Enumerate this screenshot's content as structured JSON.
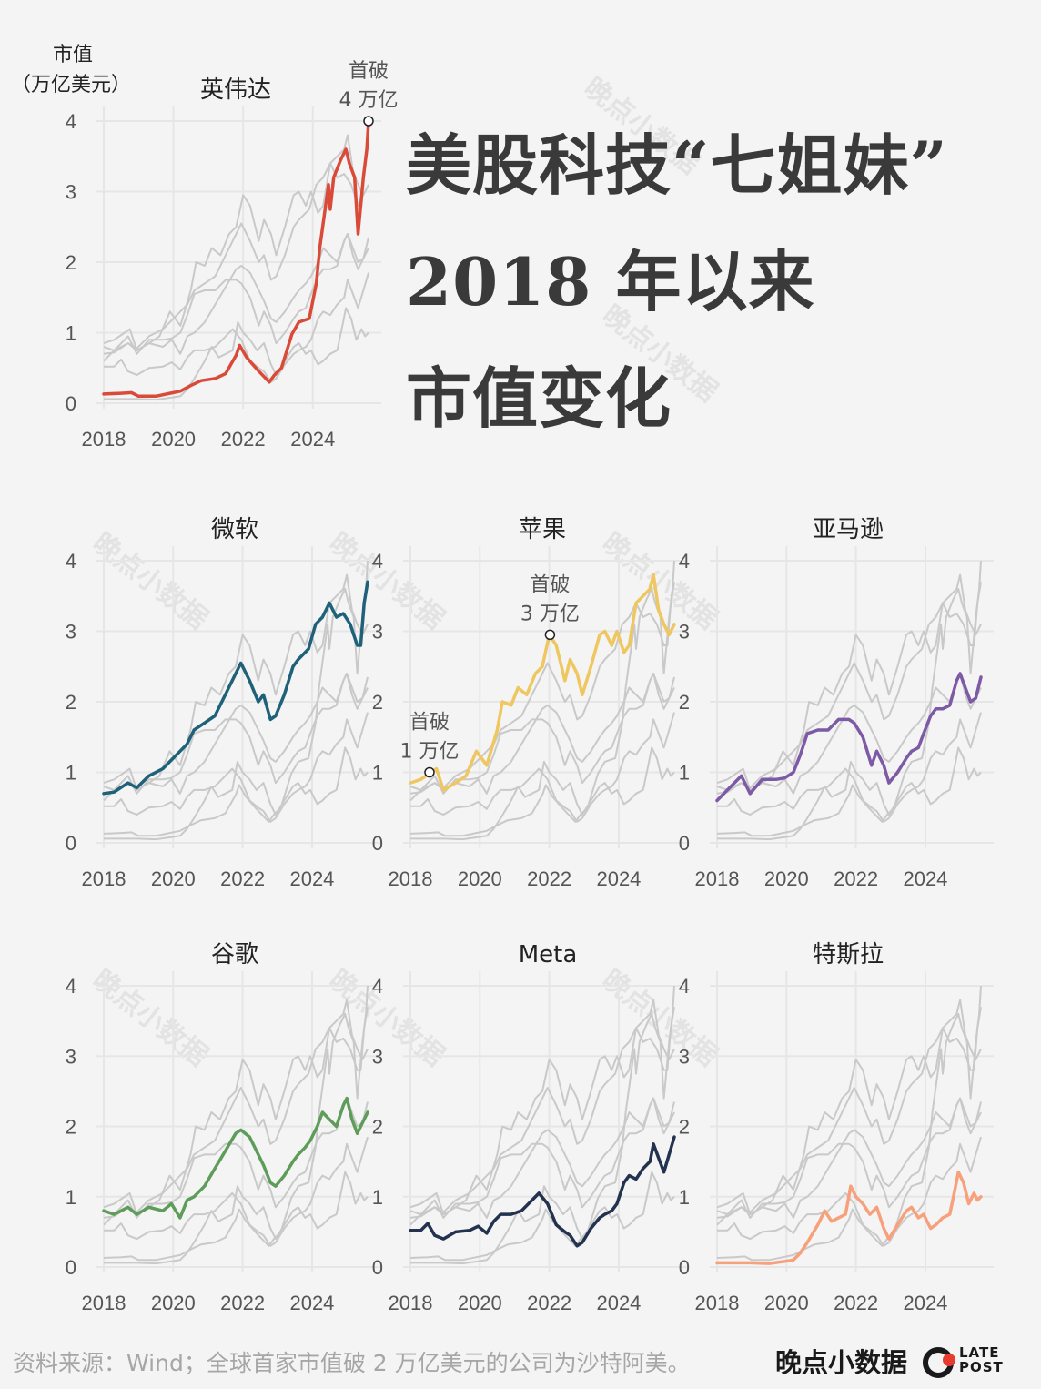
{
  "headline": {
    "line1": "美股科技“七姐妹”",
    "line2": "2018 年以来",
    "line3": "市值变化"
  },
  "source": "资料来源：Wind；全球首家市值破 2 万亿美元的公司为沙特阿美。",
  "brand": {
    "name": "晚点小数据",
    "logo_line1": "LATE",
    "logo_line2": "POST",
    "logo_icon": "latepost-logo-icon"
  },
  "watermark_text": "晚点小数据",
  "chart_data": {
    "type": "line",
    "layout": "small-multiples",
    "ylabel_line1": "市值",
    "ylabel_line2": "（万亿美元）",
    "ylim": [
      0,
      4
    ],
    "yticks": [
      "0",
      "1",
      "2",
      "3",
      "4"
    ],
    "xlim": [
      2018.0,
      2025.6
    ],
    "xticks": [
      "2018",
      "2020",
      "2022",
      "2024"
    ],
    "grid": true,
    "background_series_color": "#c9c9c9",
    "series": [
      {
        "name": "英伟达",
        "color": "#d94a38",
        "points": [
          [
            2018.0,
            0.13
          ],
          [
            2018.5,
            0.14
          ],
          [
            2018.8,
            0.15
          ],
          [
            2019.0,
            0.1
          ],
          [
            2019.5,
            0.1
          ],
          [
            2019.9,
            0.14
          ],
          [
            2020.2,
            0.17
          ],
          [
            2020.5,
            0.25
          ],
          [
            2020.8,
            0.32
          ],
          [
            2021.2,
            0.35
          ],
          [
            2021.5,
            0.42
          ],
          [
            2021.8,
            0.68
          ],
          [
            2021.9,
            0.82
          ],
          [
            2022.1,
            0.65
          ],
          [
            2022.4,
            0.48
          ],
          [
            2022.75,
            0.3
          ],
          [
            2022.9,
            0.4
          ],
          [
            2023.1,
            0.5
          ],
          [
            2023.4,
            0.98
          ],
          [
            2023.6,
            1.15
          ],
          [
            2023.9,
            1.2
          ],
          [
            2024.1,
            1.7
          ],
          [
            2024.2,
            2.2
          ],
          [
            2024.45,
            3.1
          ],
          [
            2024.5,
            2.75
          ],
          [
            2024.6,
            3.2
          ],
          [
            2024.8,
            3.45
          ],
          [
            2024.95,
            3.6
          ],
          [
            2025.05,
            3.4
          ],
          [
            2025.2,
            3.2
          ],
          [
            2025.3,
            2.4
          ],
          [
            2025.45,
            3.2
          ],
          [
            2025.55,
            3.6
          ],
          [
            2025.6,
            4.0
          ]
        ]
      },
      {
        "name": "微软",
        "color": "#1f6178",
        "points": [
          [
            2018.0,
            0.7
          ],
          [
            2018.3,
            0.72
          ],
          [
            2018.7,
            0.85
          ],
          [
            2018.95,
            0.78
          ],
          [
            2019.3,
            0.95
          ],
          [
            2019.7,
            1.05
          ],
          [
            2020.0,
            1.2
          ],
          [
            2020.2,
            1.3
          ],
          [
            2020.4,
            1.4
          ],
          [
            2020.6,
            1.6
          ],
          [
            2020.9,
            1.7
          ],
          [
            2021.2,
            1.8
          ],
          [
            2021.5,
            2.1
          ],
          [
            2021.8,
            2.4
          ],
          [
            2021.95,
            2.55
          ],
          [
            2022.2,
            2.3
          ],
          [
            2022.45,
            2.0
          ],
          [
            2022.6,
            2.1
          ],
          [
            2022.8,
            1.75
          ],
          [
            2022.95,
            1.8
          ],
          [
            2023.2,
            2.1
          ],
          [
            2023.45,
            2.5
          ],
          [
            2023.6,
            2.6
          ],
          [
            2023.9,
            2.75
          ],
          [
            2024.1,
            3.1
          ],
          [
            2024.3,
            3.2
          ],
          [
            2024.5,
            3.4
          ],
          [
            2024.7,
            3.2
          ],
          [
            2024.9,
            3.25
          ],
          [
            2025.1,
            3.1
          ],
          [
            2025.3,
            2.8
          ],
          [
            2025.4,
            2.8
          ],
          [
            2025.5,
            3.4
          ],
          [
            2025.6,
            3.7
          ]
        ]
      },
      {
        "name": "苹果",
        "color": "#efc760",
        "points": [
          [
            2018.0,
            0.85
          ],
          [
            2018.3,
            0.9
          ],
          [
            2018.6,
            1.0
          ],
          [
            2018.75,
            1.05
          ],
          [
            2018.95,
            0.75
          ],
          [
            2019.3,
            0.85
          ],
          [
            2019.6,
            0.95
          ],
          [
            2019.9,
            1.3
          ],
          [
            2020.2,
            1.1
          ],
          [
            2020.5,
            1.6
          ],
          [
            2020.65,
            2.0
          ],
          [
            2020.9,
            1.95
          ],
          [
            2021.1,
            2.2
          ],
          [
            2021.35,
            2.1
          ],
          [
            2021.6,
            2.4
          ],
          [
            2021.8,
            2.5
          ],
          [
            2022.0,
            2.95
          ],
          [
            2022.2,
            2.8
          ],
          [
            2022.45,
            2.3
          ],
          [
            2022.6,
            2.6
          ],
          [
            2022.8,
            2.4
          ],
          [
            2022.95,
            2.1
          ],
          [
            2023.2,
            2.5
          ],
          [
            2023.45,
            2.95
          ],
          [
            2023.6,
            3.0
          ],
          [
            2023.8,
            2.8
          ],
          [
            2023.95,
            3.0
          ],
          [
            2024.15,
            2.7
          ],
          [
            2024.3,
            2.8
          ],
          [
            2024.5,
            3.4
          ],
          [
            2024.7,
            3.5
          ],
          [
            2024.9,
            3.6
          ],
          [
            2025.0,
            3.8
          ],
          [
            2025.15,
            3.3
          ],
          [
            2025.3,
            3.1
          ],
          [
            2025.45,
            2.95
          ],
          [
            2025.6,
            3.1
          ]
        ]
      },
      {
        "name": "亚马逊",
        "color": "#7c5aa6",
        "points": [
          [
            2018.0,
            0.6
          ],
          [
            2018.3,
            0.75
          ],
          [
            2018.7,
            0.95
          ],
          [
            2018.95,
            0.7
          ],
          [
            2019.3,
            0.9
          ],
          [
            2019.7,
            0.9
          ],
          [
            2019.95,
            0.92
          ],
          [
            2020.2,
            1.0
          ],
          [
            2020.4,
            1.25
          ],
          [
            2020.6,
            1.55
          ],
          [
            2020.9,
            1.6
          ],
          [
            2021.2,
            1.6
          ],
          [
            2021.5,
            1.75
          ],
          [
            2021.8,
            1.75
          ],
          [
            2021.95,
            1.7
          ],
          [
            2022.2,
            1.5
          ],
          [
            2022.45,
            1.1
          ],
          [
            2022.6,
            1.3
          ],
          [
            2022.8,
            1.1
          ],
          [
            2022.95,
            0.85
          ],
          [
            2023.2,
            1.0
          ],
          [
            2023.45,
            1.2
          ],
          [
            2023.6,
            1.3
          ],
          [
            2023.8,
            1.35
          ],
          [
            2023.95,
            1.55
          ],
          [
            2024.15,
            1.8
          ],
          [
            2024.3,
            1.9
          ],
          [
            2024.5,
            1.9
          ],
          [
            2024.7,
            1.95
          ],
          [
            2024.9,
            2.3
          ],
          [
            2025.0,
            2.4
          ],
          [
            2025.15,
            2.2
          ],
          [
            2025.3,
            2.0
          ],
          [
            2025.45,
            2.05
          ],
          [
            2025.6,
            2.35
          ]
        ]
      },
      {
        "name": "谷歌",
        "color": "#5e9c59",
        "points": [
          [
            2018.0,
            0.8
          ],
          [
            2018.3,
            0.75
          ],
          [
            2018.7,
            0.85
          ],
          [
            2018.95,
            0.75
          ],
          [
            2019.3,
            0.85
          ],
          [
            2019.7,
            0.8
          ],
          [
            2019.95,
            0.9
          ],
          [
            2020.2,
            0.7
          ],
          [
            2020.4,
            0.95
          ],
          [
            2020.6,
            1.0
          ],
          [
            2020.9,
            1.15
          ],
          [
            2021.2,
            1.4
          ],
          [
            2021.5,
            1.65
          ],
          [
            2021.8,
            1.9
          ],
          [
            2021.95,
            1.95
          ],
          [
            2022.2,
            1.85
          ],
          [
            2022.45,
            1.6
          ],
          [
            2022.6,
            1.45
          ],
          [
            2022.8,
            1.2
          ],
          [
            2022.95,
            1.15
          ],
          [
            2023.2,
            1.3
          ],
          [
            2023.45,
            1.5
          ],
          [
            2023.6,
            1.6
          ],
          [
            2023.8,
            1.7
          ],
          [
            2023.95,
            1.8
          ],
          [
            2024.15,
            2.0
          ],
          [
            2024.3,
            2.2
          ],
          [
            2024.5,
            2.1
          ],
          [
            2024.7,
            2.0
          ],
          [
            2024.9,
            2.3
          ],
          [
            2025.0,
            2.4
          ],
          [
            2025.15,
            2.1
          ],
          [
            2025.3,
            1.9
          ],
          [
            2025.45,
            2.05
          ],
          [
            2025.6,
            2.2
          ]
        ]
      },
      {
        "name": "Meta",
        "color": "#22324f",
        "points": [
          [
            2018.0,
            0.52
          ],
          [
            2018.3,
            0.52
          ],
          [
            2018.5,
            0.62
          ],
          [
            2018.7,
            0.45
          ],
          [
            2018.95,
            0.4
          ],
          [
            2019.3,
            0.5
          ],
          [
            2019.7,
            0.52
          ],
          [
            2019.95,
            0.58
          ],
          [
            2020.2,
            0.48
          ],
          [
            2020.4,
            0.65
          ],
          [
            2020.6,
            0.75
          ],
          [
            2020.9,
            0.75
          ],
          [
            2021.2,
            0.8
          ],
          [
            2021.5,
            0.95
          ],
          [
            2021.7,
            1.05
          ],
          [
            2021.95,
            0.9
          ],
          [
            2022.2,
            0.6
          ],
          [
            2022.45,
            0.5
          ],
          [
            2022.6,
            0.45
          ],
          [
            2022.8,
            0.3
          ],
          [
            2022.95,
            0.35
          ],
          [
            2023.2,
            0.55
          ],
          [
            2023.45,
            0.7
          ],
          [
            2023.6,
            0.75
          ],
          [
            2023.8,
            0.8
          ],
          [
            2023.95,
            0.9
          ],
          [
            2024.15,
            1.2
          ],
          [
            2024.3,
            1.3
          ],
          [
            2024.5,
            1.25
          ],
          [
            2024.7,
            1.4
          ],
          [
            2024.9,
            1.5
          ],
          [
            2025.0,
            1.75
          ],
          [
            2025.15,
            1.55
          ],
          [
            2025.3,
            1.35
          ],
          [
            2025.45,
            1.6
          ],
          [
            2025.6,
            1.85
          ]
        ]
      },
      {
        "name": "特斯拉",
        "color": "#f7a07c",
        "points": [
          [
            2018.0,
            0.06
          ],
          [
            2018.5,
            0.06
          ],
          [
            2018.95,
            0.06
          ],
          [
            2019.5,
            0.05
          ],
          [
            2019.95,
            0.08
          ],
          [
            2020.2,
            0.1
          ],
          [
            2020.4,
            0.2
          ],
          [
            2020.6,
            0.35
          ],
          [
            2020.9,
            0.6
          ],
          [
            2021.1,
            0.8
          ],
          [
            2021.3,
            0.65
          ],
          [
            2021.5,
            0.7
          ],
          [
            2021.7,
            0.75
          ],
          [
            2021.85,
            1.15
          ],
          [
            2022.0,
            1.0
          ],
          [
            2022.2,
            0.9
          ],
          [
            2022.4,
            0.75
          ],
          [
            2022.6,
            0.85
          ],
          [
            2022.8,
            0.55
          ],
          [
            2022.95,
            0.4
          ],
          [
            2023.2,
            0.6
          ],
          [
            2023.45,
            0.8
          ],
          [
            2023.6,
            0.85
          ],
          [
            2023.8,
            0.7
          ],
          [
            2023.95,
            0.75
          ],
          [
            2024.15,
            0.55
          ],
          [
            2024.3,
            0.6
          ],
          [
            2024.5,
            0.7
          ],
          [
            2024.7,
            0.75
          ],
          [
            2024.85,
            1.1
          ],
          [
            2024.95,
            1.35
          ],
          [
            2025.1,
            1.2
          ],
          [
            2025.25,
            0.9
          ],
          [
            2025.4,
            1.05
          ],
          [
            2025.5,
            0.95
          ],
          [
            2025.6,
            1.0
          ]
        ]
      }
    ],
    "annotations": [
      {
        "series": "英伟达",
        "x": 2025.6,
        "y": 4.0,
        "line1": "首破",
        "line2": "4 万亿"
      },
      {
        "series": "苹果",
        "x": 2018.55,
        "y": 1.0,
        "line1": "首破",
        "line2": "1 万亿"
      },
      {
        "series": "苹果",
        "x": 2022.02,
        "y": 2.95,
        "line1": "首破",
        "line2": "3 万亿"
      }
    ]
  }
}
